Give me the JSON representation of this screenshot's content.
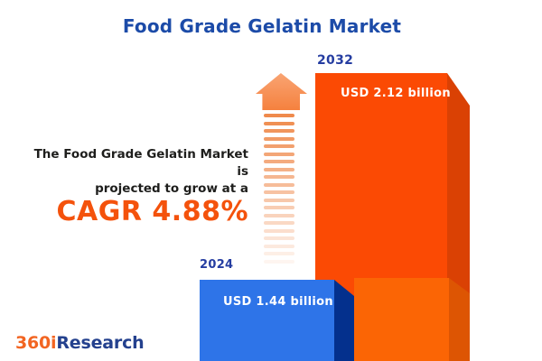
{
  "title": "Food Grade Gelatin Market",
  "description": {
    "line1": "The Food Grade Gelatin Market is",
    "line2": "projected to grow at a",
    "cagr_text": "CAGR 4.88%"
  },
  "chart_data": {
    "type": "bar",
    "categories": [
      "2024",
      "2032"
    ],
    "values": [
      1.44,
      2.12
    ],
    "unit": "USD billion",
    "value_labels": [
      "USD 1.44 billion",
      "USD 2.12 billion"
    ],
    "cagr_percent": 4.88,
    "title": "Food Grade Gelatin Market",
    "legend_position": "none",
    "grid": false,
    "series_colors": {
      "2024": "#2e74e8",
      "2032": "#fb4a04"
    }
  },
  "bars": {
    "b2024": {
      "year": "2024",
      "value_label": "USD 1.44 billion"
    },
    "b2032": {
      "year": "2032",
      "value_label": "USD 2.12 billion"
    }
  },
  "logo": {
    "part1": "360i",
    "part2": "Research"
  },
  "colors": {
    "title_blue": "#1c4ba8",
    "year_label_blue": "#253da1",
    "body_text": "#1e1e1c",
    "cagr_orange": "#f4520c",
    "bar_2024_front": "#2e74e8",
    "bar_2024_side": "#04308d",
    "bar_2032_front": "#fb4a04",
    "bar_2032_side": "#da4104",
    "bar_2032_base_front": "#fb6505",
    "bar_2032_base_side": "#dd5503",
    "arrow_orange": "#f5813e",
    "logo_orange": "#f26522",
    "logo_navy": "#24418e",
    "background": "#ffffff"
  }
}
